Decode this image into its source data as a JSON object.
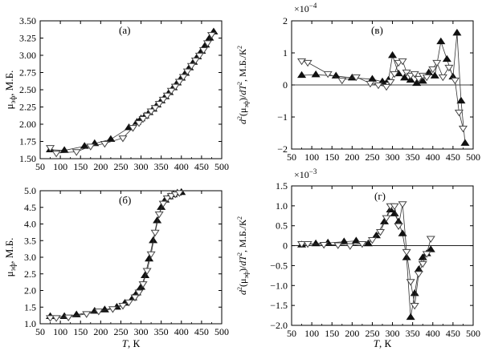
{
  "chart_data": [
    {
      "panel": "(а)",
      "type": "scatter",
      "ylabel": "μ_эф, М.Б.",
      "xlabel": "",
      "xlim": [
        50,
        500
      ],
      "ylim": [
        1.5,
        3.5
      ],
      "xticks": [
        "50",
        "100",
        "150",
        "200",
        "250",
        "300",
        "350",
        "400",
        "450",
        "500"
      ],
      "yticks": [
        "1.50",
        "1.75",
        "2.00",
        "2.25",
        "2.50",
        "2.75",
        "3.00",
        "3.25",
        "3.50"
      ],
      "series": [
        {
          "marker": "triangle-up-filled",
          "x": [
            75,
            110,
            160,
            185,
            225,
            270,
            290,
            300,
            310,
            320,
            330,
            340,
            350,
            360,
            370,
            380,
            390,
            400,
            410,
            420,
            430,
            440,
            450,
            460,
            470,
            480
          ],
          "y": [
            1.63,
            1.62,
            1.68,
            1.72,
            1.78,
            1.95,
            2.03,
            2.08,
            2.12,
            2.17,
            2.22,
            2.28,
            2.34,
            2.4,
            2.46,
            2.53,
            2.6,
            2.67,
            2.74,
            2.82,
            2.9,
            2.98,
            3.06,
            3.15,
            3.25,
            3.34
          ]
        },
        {
          "marker": "triangle-down-open",
          "x": [
            75,
            90,
            140,
            175,
            210,
            255,
            280,
            295,
            305,
            315,
            325,
            335,
            345,
            355,
            365,
            375,
            385,
            395,
            405,
            415,
            425,
            435,
            445,
            455,
            465,
            475
          ],
          "y": [
            1.66,
            1.58,
            1.6,
            1.68,
            1.72,
            1.8,
            1.95,
            2.02,
            2.08,
            2.13,
            2.19,
            2.24,
            2.3,
            2.36,
            2.42,
            2.49,
            2.55,
            2.62,
            2.69,
            2.77,
            2.85,
            2.93,
            3.0,
            3.08,
            3.18,
            3.3
          ]
        }
      ]
    },
    {
      "panel": "(б)",
      "type": "scatter",
      "ylabel": "μ_эф, М.Б.",
      "xlabel": "T, К",
      "xlim": [
        50,
        500
      ],
      "ylim": [
        1.0,
        5.0
      ],
      "xticks": [
        "50",
        "100",
        "150",
        "200",
        "250",
        "300",
        "350",
        "400",
        "450",
        "500"
      ],
      "yticks": [
        "1.0",
        "1.5",
        "2.0",
        "2.5",
        "3.0",
        "3.5",
        "4.0",
        "4.5",
        "5.0"
      ],
      "series": [
        {
          "marker": "triangle-up-filled",
          "x": [
            75,
            110,
            140,
            185,
            210,
            240,
            260,
            280,
            290,
            300,
            310,
            320,
            330,
            340,
            350,
            360,
            370,
            380,
            390,
            400
          ],
          "y": [
            1.22,
            1.22,
            1.27,
            1.38,
            1.42,
            1.5,
            1.62,
            1.78,
            1.93,
            2.1,
            2.45,
            2.95,
            3.5,
            4.1,
            4.5,
            4.72,
            4.82,
            4.88,
            4.93,
            4.95
          ]
        },
        {
          "marker": "triangle-down-open",
          "x": [
            75,
            90,
            120,
            165,
            195,
            230,
            255,
            270,
            285,
            295,
            305,
            315,
            325,
            335,
            345,
            355,
            365,
            375,
            385,
            395
          ],
          "y": [
            1.18,
            1.18,
            1.2,
            1.3,
            1.38,
            1.45,
            1.55,
            1.65,
            1.8,
            1.95,
            2.2,
            2.6,
            3.1,
            3.75,
            4.3,
            4.62,
            4.78,
            4.85,
            4.9,
            4.94
          ]
        }
      ]
    },
    {
      "panel": "(в)",
      "type": "scatter",
      "ylabel": "d²(μ_эф)/dT², М.Б./К²",
      "xlabel": "",
      "multiplier": "×10⁻⁴",
      "xlim": [
        50,
        500
      ],
      "ylim": [
        -2,
        2
      ],
      "xticks": [
        "50",
        "100",
        "150",
        "200",
        "250",
        "300",
        "350",
        "400",
        "450",
        "500"
      ],
      "yticks": [
        "−2",
        "−1",
        "0",
        "1",
        "2"
      ],
      "series": [
        {
          "marker": "triangle-up-filled",
          "x": [
            75,
            110,
            160,
            200,
            250,
            275,
            290,
            300,
            315,
            330,
            345,
            360,
            375,
            390,
            405,
            420,
            435,
            450,
            460,
            470,
            480
          ],
          "y": [
            0.3,
            0.32,
            0.28,
            0.22,
            0.18,
            0.1,
            0.15,
            0.92,
            0.35,
            0.22,
            0.15,
            0.05,
            0.12,
            0.38,
            0.28,
            1.35,
            0.8,
            0.25,
            1.62,
            -0.5,
            -1.82
          ]
        },
        {
          "marker": "triangle-down-open",
          "x": [
            75,
            90,
            140,
            175,
            210,
            245,
            265,
            285,
            295,
            305,
            315,
            325,
            335,
            345,
            355,
            365,
            375,
            385,
            400,
            410,
            425,
            440,
            455,
            465,
            475
          ],
          "y": [
            0.75,
            0.7,
            0.35,
            0.15,
            0.25,
            0.05,
            0.0,
            -0.05,
            0.1,
            0.35,
            0.7,
            0.75,
            0.4,
            0.3,
            0.35,
            0.2,
            0.3,
            0.25,
            0.5,
            0.7,
            0.25,
            0.55,
            0.15,
            -0.85,
            -1.35
          ]
        }
      ]
    },
    {
      "panel": "(г)",
      "type": "scatter",
      "ylabel": "d²(μ_эф)/dT², М.Б./К²",
      "xlabel": "T, К",
      "multiplier": "×10⁻³",
      "xlim": [
        50,
        500
      ],
      "ylim": [
        -2.0,
        1.5
      ],
      "xticks": [
        "50",
        "100",
        "150",
        "200",
        "250",
        "300",
        "350",
        "400",
        "450",
        "500"
      ],
      "yticks": [
        "−2.0",
        "−1.5",
        "−1.0",
        "−0.5",
        "0",
        "0.5",
        "1.0",
        "1.5"
      ],
      "series": [
        {
          "marker": "triangle-up-filled",
          "x": [
            75,
            110,
            140,
            180,
            210,
            240,
            260,
            280,
            295,
            305,
            315,
            325,
            335,
            345,
            355,
            365,
            375,
            385,
            395
          ],
          "y": [
            0.02,
            0.05,
            0.07,
            0.1,
            0.12,
            0.05,
            0.25,
            0.6,
            0.9,
            0.8,
            0.6,
            0.3,
            -0.3,
            -1.8,
            -1.2,
            -0.6,
            -0.3,
            -0.2,
            -0.1
          ]
        },
        {
          "marker": "triangle-down-open",
          "x": [
            75,
            90,
            130,
            165,
            195,
            225,
            250,
            270,
            285,
            295,
            305,
            315,
            325,
            335,
            345,
            355,
            365,
            375,
            385,
            395
          ],
          "y": [
            0.05,
            0.05,
            0.03,
            0.02,
            0.0,
            0.05,
            0.15,
            0.35,
            0.7,
            1.0,
            1.0,
            0.5,
            1.05,
            -0.15,
            -0.9,
            -1.5,
            -0.7,
            -0.45,
            -0.2,
            0.18
          ]
        }
      ]
    }
  ]
}
